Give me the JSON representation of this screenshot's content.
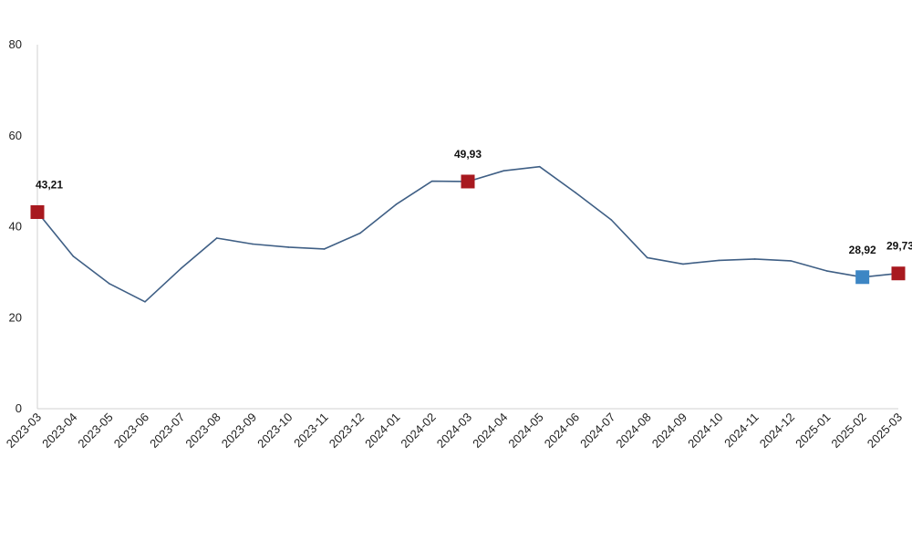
{
  "chart_data": {
    "type": "line",
    "title": "",
    "xlabel": "",
    "ylabel": "",
    "ylim": [
      0,
      80
    ],
    "yticks": [
      "0",
      "20",
      "40",
      "60",
      "80"
    ],
    "grid": false,
    "legend": "none",
    "x": [
      "2023-03",
      "2023-04",
      "2023-05",
      "2023-06",
      "2023-07",
      "2023-08",
      "2023-09",
      "2023-10",
      "2023-11",
      "2023-12",
      "2024-01",
      "2024-02",
      "2024-03",
      "2024-04",
      "2024-05",
      "2024-06",
      "2024-07",
      "2024-08",
      "2024-09",
      "2024-10",
      "2024-11",
      "2024-12",
      "2025-01",
      "2025-02",
      "2025-03"
    ],
    "series": [
      {
        "color": "#3f5f85",
        "values": [
          43.21,
          33.5,
          27.5,
          23.5,
          30.8,
          37.5,
          36.2,
          35.5,
          35.1,
          38.6,
          44.9,
          50.0,
          49.93,
          52.3,
          53.2,
          47.5,
          41.5,
          33.2,
          31.8,
          32.6,
          32.9,
          32.5,
          30.3,
          28.92,
          29.73
        ]
      }
    ],
    "markers": [
      {
        "index": 0,
        "label": "43,21",
        "color": "#a8191f"
      },
      {
        "index": 12,
        "label": "49,93",
        "color": "#a8191f"
      },
      {
        "index": 23,
        "label": "28,92",
        "color": "#3d86c4"
      },
      {
        "index": 24,
        "label": "29,73",
        "color": "#a8191f"
      }
    ]
  }
}
